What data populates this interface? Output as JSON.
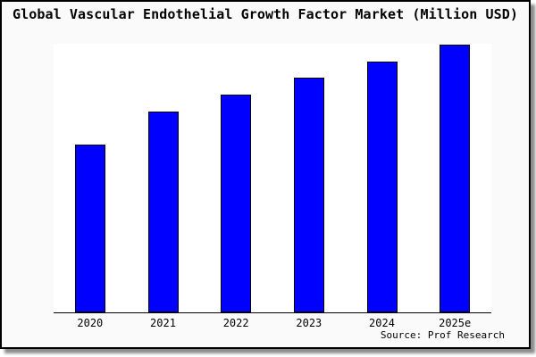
{
  "chart_data": {
    "type": "bar",
    "title": "Global Vascular Endothelial Growth Factor Market (Million USD)",
    "categories": [
      "2020",
      "2021",
      "2022",
      "2023",
      "2024",
      "2025e"
    ],
    "values": [
      62.7,
      75.0,
      81.3,
      87.7,
      93.7,
      100.0
    ],
    "values_note": "Relative bar heights (2025e = 100); the chart displays no numeric y-axis tick labels",
    "xlabel": "",
    "ylabel": "",
    "ylim": [
      0,
      100
    ],
    "grid": false,
    "legend": false,
    "y_axis_labels_visible": false,
    "source": "Source: Prof Research",
    "colors": {
      "bar_fill": "#0000ff",
      "bar_edge": "#000000",
      "plot_background": "#ffffff",
      "canvas_background": "#fafafa",
      "frame_border": "#000000",
      "text": "#000000"
    }
  }
}
